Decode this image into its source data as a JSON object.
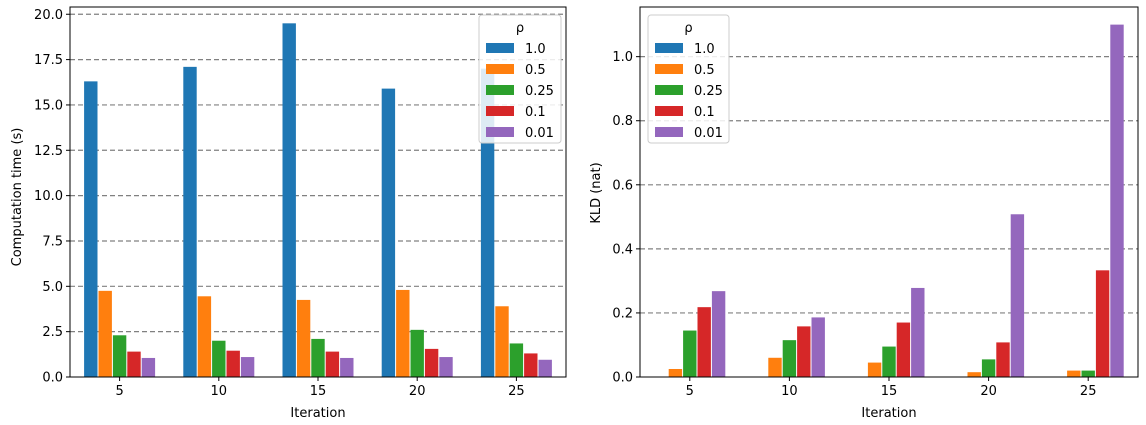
{
  "chart_data": [
    {
      "type": "bar",
      "title": "",
      "xlabel": "Iteration",
      "ylabel": "Computation time (s)",
      "categories": [
        "5",
        "10",
        "15",
        "20",
        "25"
      ],
      "ylim": [
        0,
        20.4
      ],
      "yticks": [
        "0.0",
        "2.5",
        "5.0",
        "7.5",
        "10.0",
        "12.5",
        "15.0",
        "17.5",
        "20.0"
      ],
      "grid": "horizontal dashed",
      "legend_title": "ρ",
      "legend_position": "top-right",
      "series": [
        {
          "name": "1.0",
          "color": "#1f77b4",
          "values": [
            16.3,
            17.1,
            19.5,
            15.9,
            17.0
          ]
        },
        {
          "name": "0.5",
          "color": "#ff7f0e",
          "values": [
            4.75,
            4.45,
            4.25,
            4.8,
            3.9
          ]
        },
        {
          "name": "0.25",
          "color": "#2ca02c",
          "values": [
            2.3,
            2.0,
            2.1,
            2.6,
            1.85
          ]
        },
        {
          "name": "0.1",
          "color": "#d62728",
          "values": [
            1.4,
            1.45,
            1.4,
            1.55,
            1.3
          ]
        },
        {
          "name": "0.01",
          "color": "#9467bd",
          "values": [
            1.05,
            1.1,
            1.05,
            1.1,
            0.95
          ]
        }
      ]
    },
    {
      "type": "bar",
      "title": "",
      "xlabel": "Iteration",
      "ylabel": "KLD (nat)",
      "categories": [
        "5",
        "10",
        "15",
        "20",
        "25"
      ],
      "ylim": [
        0,
        1.155
      ],
      "yticks": [
        "0.0",
        "0.2",
        "0.4",
        "0.6",
        "0.8",
        "1.0"
      ],
      "grid": "horizontal dashed",
      "legend_title": "ρ",
      "legend_position": "top-left",
      "series": [
        {
          "name": "1.0",
          "color": "#1f77b4",
          "values": [
            0,
            0,
            0,
            0,
            0
          ]
        },
        {
          "name": "0.5",
          "color": "#ff7f0e",
          "values": [
            0.025,
            0.06,
            0.045,
            0.015,
            0.02
          ]
        },
        {
          "name": "0.25",
          "color": "#2ca02c",
          "values": [
            0.145,
            0.115,
            0.095,
            0.055,
            0.02
          ]
        },
        {
          "name": "0.1",
          "color": "#d62728",
          "values": [
            0.218,
            0.158,
            0.17,
            0.108,
            0.333
          ]
        },
        {
          "name": "0.01",
          "color": "#9467bd",
          "values": [
            0.268,
            0.186,
            0.278,
            0.508,
            1.1
          ]
        }
      ]
    }
  ]
}
